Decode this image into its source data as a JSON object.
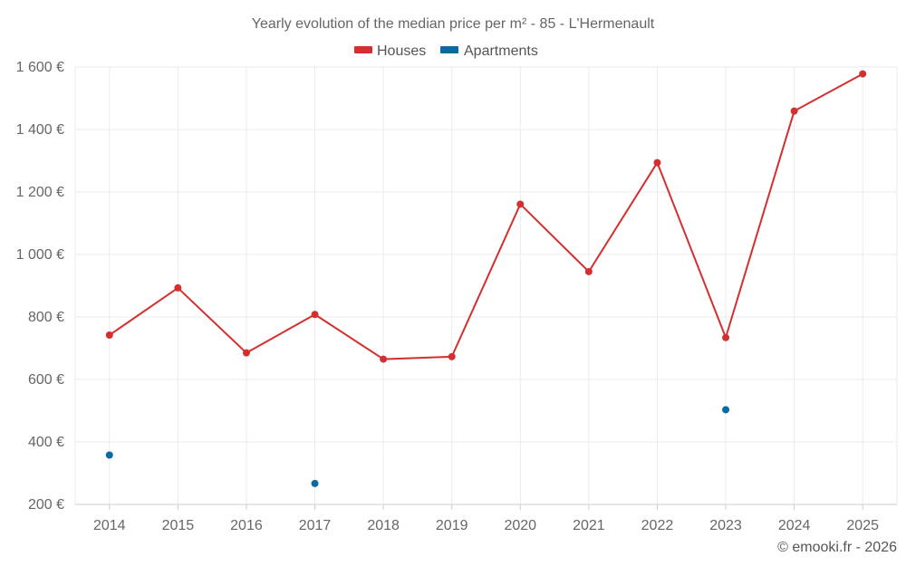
{
  "chart_data": {
    "type": "line",
    "title": "Yearly evolution of the median price per m² - 85 - L'Hermenault",
    "categories": [
      "2014",
      "2015",
      "2016",
      "2017",
      "2018",
      "2019",
      "2020",
      "2021",
      "2022",
      "2023",
      "2024",
      "2025"
    ],
    "series": [
      {
        "name": "Houses",
        "color": "#d32f2f",
        "values": [
          742,
          893,
          685,
          808,
          665,
          673,
          1161,
          945,
          1294,
          734,
          1459,
          1578
        ]
      },
      {
        "name": "Apartments",
        "color": "#0b6aa2",
        "values": [
          358,
          null,
          null,
          267,
          null,
          null,
          null,
          null,
          null,
          503,
          null,
          null
        ]
      }
    ],
    "y_ticks": [
      200,
      400,
      600,
      800,
      1000,
      1200,
      1400,
      1600
    ],
    "y_tick_labels": [
      "200 €",
      "400 €",
      "600 €",
      "800 €",
      "1 000 €",
      "1 200 €",
      "1 400 €",
      "1 600 €"
    ],
    "ylim": [
      200,
      1600
    ],
    "xlabel": "",
    "ylabel": "",
    "grid": true,
    "legend_position": "top-center"
  },
  "credit": "© emooki.fr - 2026"
}
